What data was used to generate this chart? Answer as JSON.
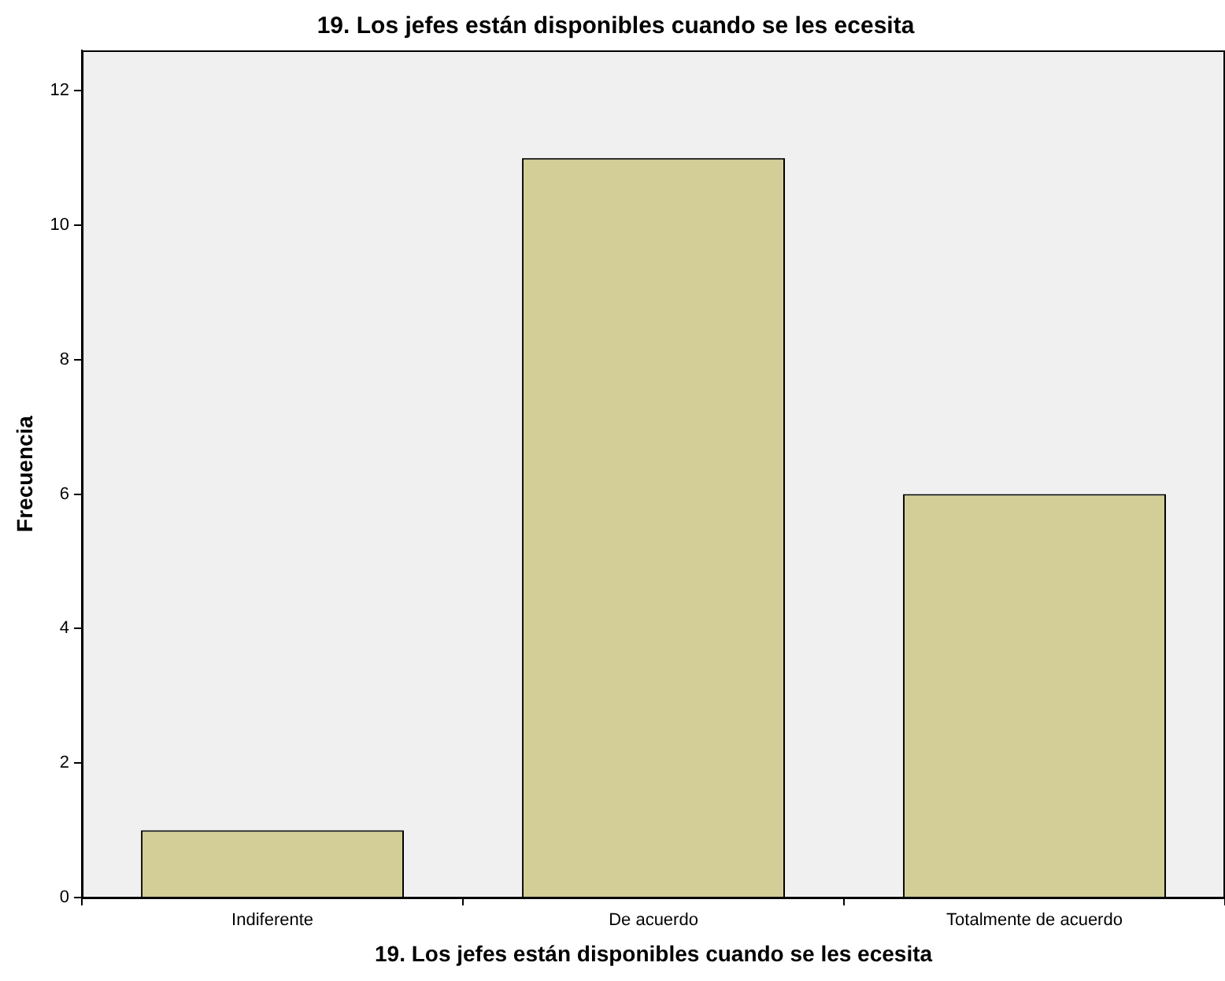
{
  "chart_data": {
    "type": "bar",
    "title": "19. Los jefes están disponibles cuando se les ecesita",
    "xlabel": "19. Los jefes están disponibles cuando se les ecesita",
    "ylabel": "Frecuencia",
    "categories": [
      "Indiferente",
      "De acuerdo",
      "Totalmente de acuerdo"
    ],
    "values": [
      1,
      11,
      6
    ],
    "color": "#d3ce97",
    "ylim": [
      0,
      12.6
    ],
    "yticks": [
      0,
      2,
      4,
      6,
      8,
      10,
      12
    ]
  }
}
